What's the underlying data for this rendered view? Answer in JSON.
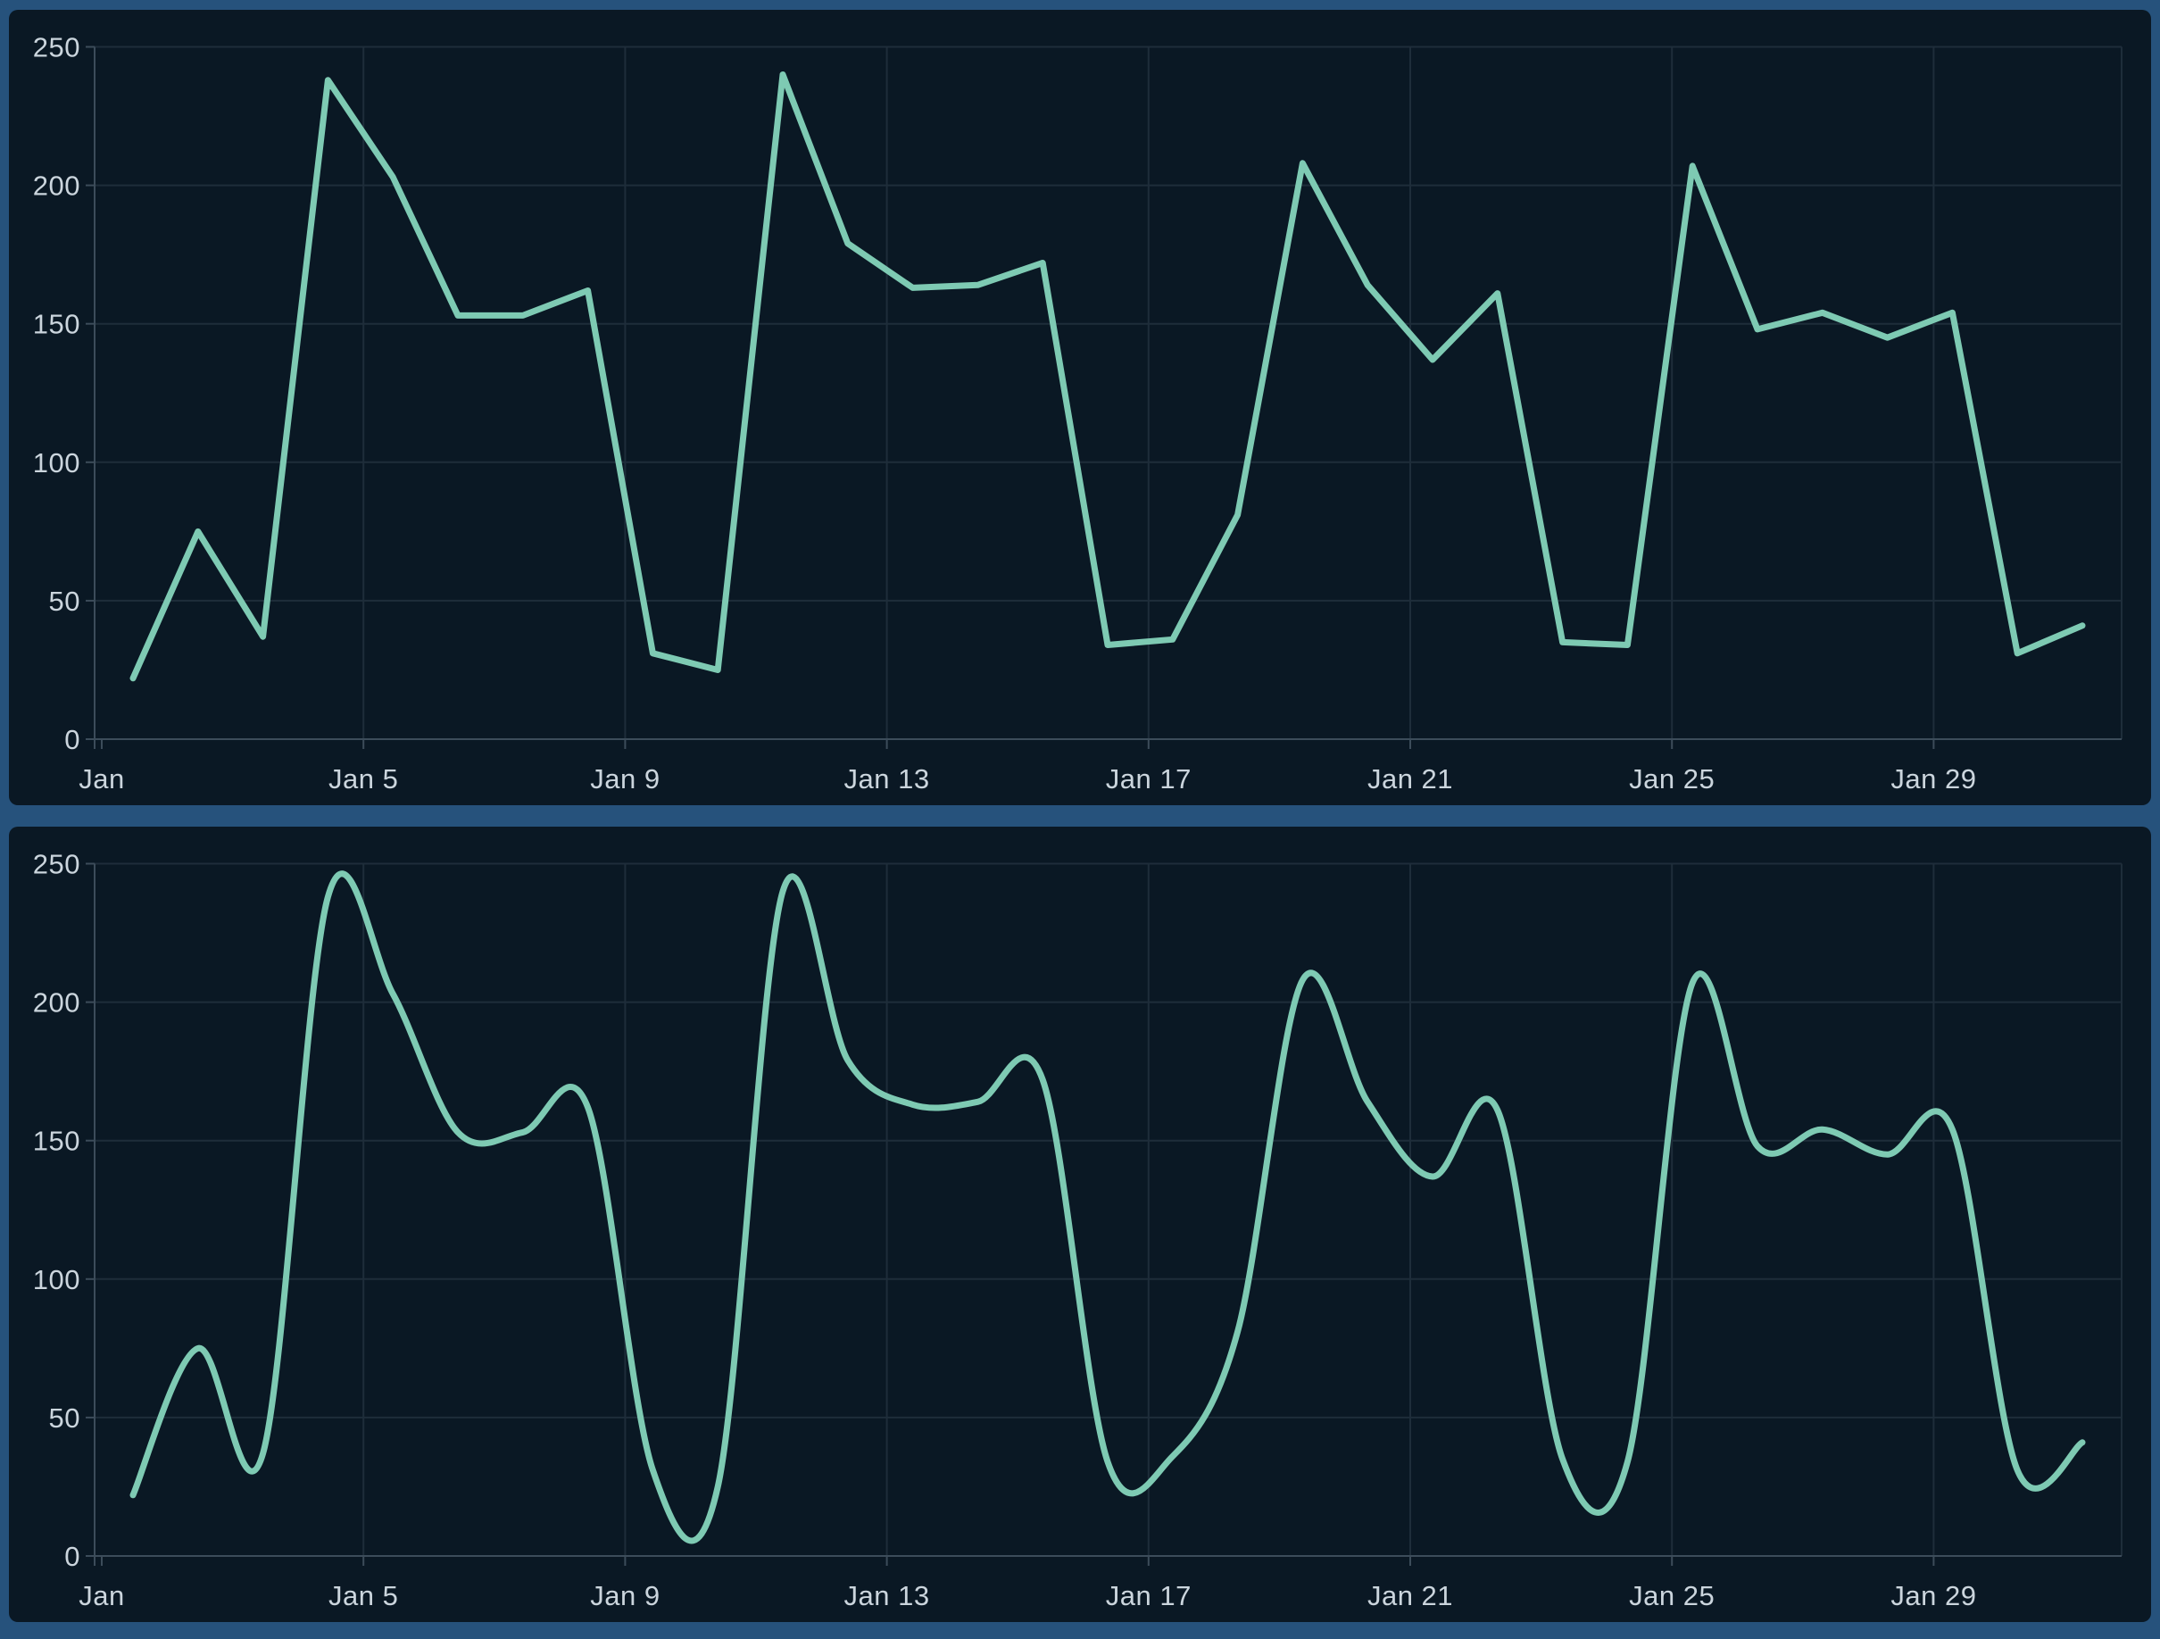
{
  "chart_data": {
    "type": "line",
    "title": "",
    "xlabel": "",
    "ylabel": "",
    "x": [
      "Jan 1",
      "Jan 2",
      "Jan 3",
      "Jan 4",
      "Jan 5",
      "Jan 6",
      "Jan 7",
      "Jan 8",
      "Jan 9",
      "Jan 10",
      "Jan 11",
      "Jan 12",
      "Jan 13",
      "Jan 14",
      "Jan 15",
      "Jan 16",
      "Jan 17",
      "Jan 18",
      "Jan 19",
      "Jan 20",
      "Jan 21",
      "Jan 22",
      "Jan 23",
      "Jan 24",
      "Jan 25",
      "Jan 26",
      "Jan 27",
      "Jan 28",
      "Jan 29",
      "Jan 30",
      "Jan 31"
    ],
    "values": [
      22,
      75,
      37,
      238,
      203,
      153,
      153,
      162,
      31,
      25,
      240,
      179,
      163,
      164,
      172,
      34,
      36,
      81,
      208,
      164,
      137,
      161,
      35,
      34,
      207,
      148,
      154,
      145,
      154,
      31,
      41
    ],
    "x_tick_labels": [
      "Jan",
      "Jan 5",
      "Jan 9",
      "Jan 13",
      "Jan 17",
      "Jan 21",
      "Jan 25",
      "Jan 29"
    ],
    "x_tick_days": [
      1,
      5,
      9,
      13,
      17,
      21,
      25,
      29
    ],
    "y_ticks": [
      0,
      50,
      100,
      150,
      200,
      250
    ],
    "ylim": [
      0,
      250
    ],
    "grid": true,
    "legend": "none",
    "panels": [
      {
        "name": "top-linear-line-chart",
        "interpolation": "linear"
      },
      {
        "name": "bottom-smoothed-line-chart",
        "interpolation": "spline"
      }
    ],
    "colors": {
      "line": "#7ecab3",
      "panel_background": "#0a1824",
      "frame_border": "#26527c",
      "gridline": "#1e2d3a",
      "axis": "#3c4c5a",
      "tick_label": "#cbd5dd"
    }
  }
}
